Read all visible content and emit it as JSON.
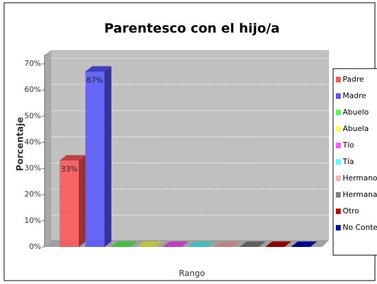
{
  "chart_data": {
    "type": "bar3d",
    "title": "Parentesco con el hijo/a",
    "x_label": "Rango",
    "y_label": "Porcentaje",
    "ylim": [
      0,
      70
    ],
    "yticks": [
      {
        "value": 0,
        "label": "0%"
      },
      {
        "value": 10,
        "label": "10%"
      },
      {
        "value": 20,
        "label": "20%"
      },
      {
        "value": 30,
        "label": "30%"
      },
      {
        "value": 40,
        "label": "40%"
      },
      {
        "value": 50,
        "label": "50%"
      },
      {
        "value": 60,
        "label": "60%"
      },
      {
        "value": 70,
        "label": "70%"
      }
    ],
    "grid": true,
    "legend": "right",
    "series": [
      {
        "name": "Padre",
        "color": "#ff5555",
        "values": [
          33
        ],
        "value_labels": [
          "33%"
        ]
      },
      {
        "name": "Madre",
        "color": "#5555ff",
        "values": [
          67
        ],
        "value_labels": [
          "67%"
        ]
      },
      {
        "name": "Abuelo",
        "color": "#55ff55",
        "values": [
          0
        ]
      },
      {
        "name": "Abuela",
        "color": "#ffff55",
        "values": [
          0
        ]
      },
      {
        "name": "Tío",
        "color": "#ff55ff",
        "values": [
          0
        ]
      },
      {
        "name": "Tía",
        "color": "#55ffff",
        "values": [
          0
        ]
      },
      {
        "name": "Hermano",
        "color": "#ffafaf",
        "values": [
          0
        ]
      },
      {
        "name": "Hermana",
        "color": "#808080",
        "values": [
          0
        ]
      },
      {
        "name": "Otro",
        "color": "#c00000",
        "values": [
          0
        ]
      },
      {
        "name": "No Contesto",
        "color": "#0000c0",
        "values": [
          0
        ]
      }
    ]
  }
}
